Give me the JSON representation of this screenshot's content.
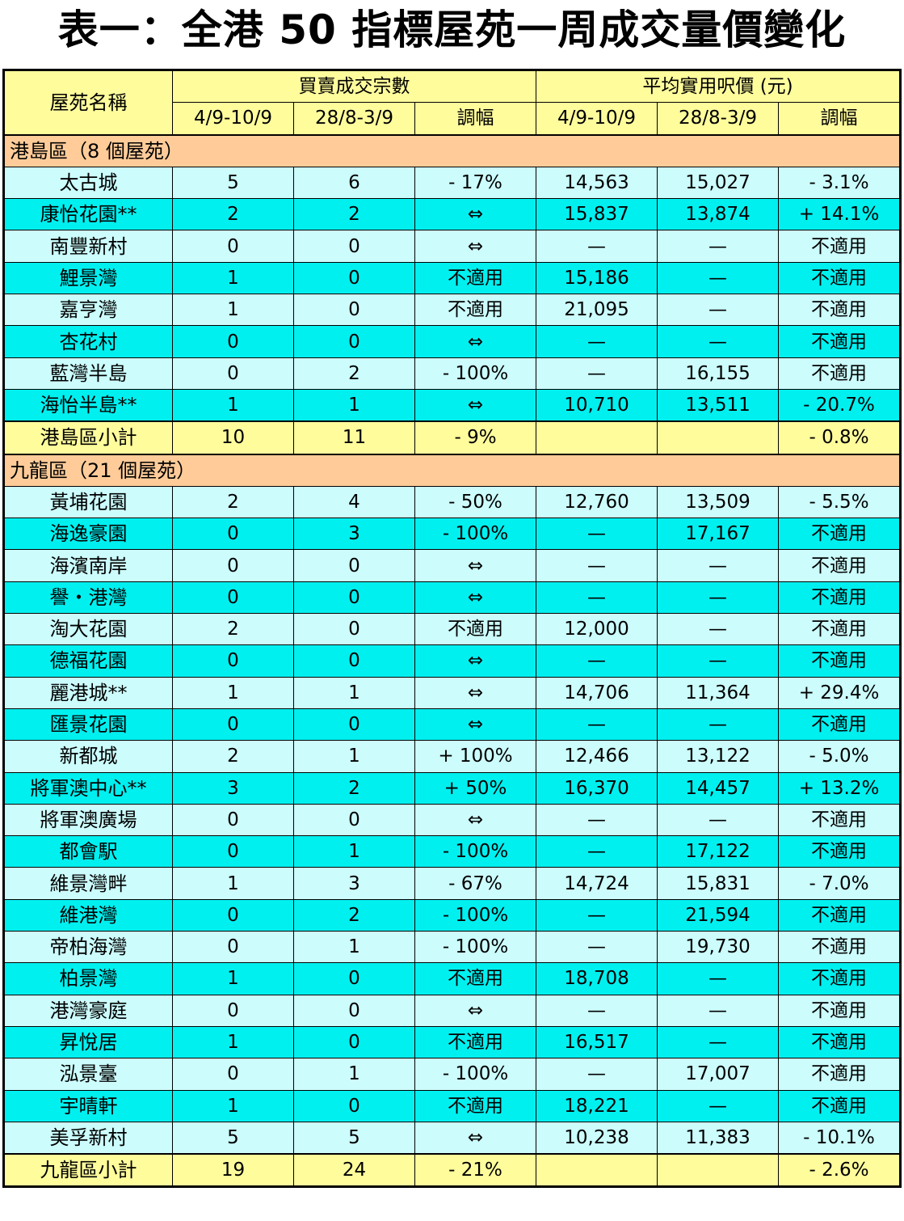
{
  "title": "表一：全港 50 指標屋苑一周成交量價變化",
  "header": {
    "estate": "屋苑名稱",
    "volume": "買賣成交宗數",
    "price": "平均實用呎價 (元)",
    "period1": "4/9-10/9",
    "period2": "28/8-3/9",
    "change": "調幅"
  },
  "sections": [
    {
      "name": "港島區（8 個屋苑）",
      "rows": [
        [
          "太古城",
          "5",
          "6",
          "- 17%",
          "14,563",
          "15,027",
          "- 3.1%"
        ],
        [
          "康怡花園**",
          "2",
          "2",
          "⇔",
          "15,837",
          "13,874",
          "+ 14.1%"
        ],
        [
          "南豐新村",
          "0",
          "0",
          "⇔",
          "—",
          "—",
          "不適用"
        ],
        [
          "鯉景灣",
          "1",
          "0",
          "不適用",
          "15,186",
          "—",
          "不適用"
        ],
        [
          "嘉亨灣",
          "1",
          "0",
          "不適用",
          "21,095",
          "—",
          "不適用"
        ],
        [
          "杏花村",
          "0",
          "0",
          "⇔",
          "—",
          "—",
          "不適用"
        ],
        [
          "藍灣半島",
          "0",
          "2",
          "- 100%",
          "—",
          "16,155",
          "不適用"
        ],
        [
          "海怡半島**",
          "1",
          "1",
          "⇔",
          "10,710",
          "13,511",
          "- 20.7%"
        ]
      ],
      "subtotal": [
        "港島區小計",
        "10",
        "11",
        "- 9%",
        "",
        "",
        "- 0.8%"
      ]
    },
    {
      "name": "九龍區（21 個屋苑）",
      "rows": [
        [
          "黃埔花園",
          "2",
          "4",
          "- 50%",
          "12,760",
          "13,509",
          "- 5.5%"
        ],
        [
          "海逸豪園",
          "0",
          "3",
          "- 100%",
          "—",
          "17,167",
          "不適用"
        ],
        [
          "海濱南岸",
          "0",
          "0",
          "⇔",
          "—",
          "—",
          "不適用"
        ],
        [
          "譽・港灣",
          "0",
          "0",
          "⇔",
          "—",
          "—",
          "不適用"
        ],
        [
          "淘大花園",
          "2",
          "0",
          "不適用",
          "12,000",
          "—",
          "不適用"
        ],
        [
          "德福花園",
          "0",
          "0",
          "⇔",
          "—",
          "—",
          "不適用"
        ],
        [
          "麗港城**",
          "1",
          "1",
          "⇔",
          "14,706",
          "11,364",
          "+ 29.4%"
        ],
        [
          "匯景花園",
          "0",
          "0",
          "⇔",
          "—",
          "—",
          "不適用"
        ],
        [
          "新都城",
          "2",
          "1",
          "+ 100%",
          "12,466",
          "13,122",
          "- 5.0%"
        ],
        [
          "將軍澳中心**",
          "3",
          "2",
          "+ 50%",
          "16,370",
          "14,457",
          "+ 13.2%"
        ],
        [
          "將軍澳廣場",
          "0",
          "0",
          "⇔",
          "—",
          "—",
          "不適用"
        ],
        [
          "都會駅",
          "0",
          "1",
          "- 100%",
          "—",
          "17,122",
          "不適用"
        ],
        [
          "維景灣畔",
          "1",
          "3",
          "- 67%",
          "14,724",
          "15,831",
          "- 7.0%"
        ],
        [
          "維港灣",
          "0",
          "2",
          "- 100%",
          "—",
          "21,594",
          "不適用"
        ],
        [
          "帝柏海灣",
          "0",
          "1",
          "- 100%",
          "—",
          "19,730",
          "不適用"
        ],
        [
          "柏景灣",
          "1",
          "0",
          "不適用",
          "18,708",
          "—",
          "不適用"
        ],
        [
          "港灣豪庭",
          "0",
          "0",
          "⇔",
          "—",
          "—",
          "不適用"
        ],
        [
          "昇悅居",
          "1",
          "0",
          "不適用",
          "16,517",
          "—",
          "不適用"
        ],
        [
          "泓景臺",
          "0",
          "1",
          "- 100%",
          "—",
          "17,007",
          "不適用"
        ],
        [
          "宇晴軒",
          "1",
          "0",
          "不適用",
          "18,221",
          "—",
          "不適用"
        ],
        [
          "美孚新村",
          "5",
          "5",
          "⇔",
          "10,238",
          "11,383",
          "- 10.1%"
        ]
      ],
      "subtotal": [
        "九龍區小計",
        "19",
        "24",
        "- 21%",
        "",
        "",
        "- 2.6%"
      ]
    }
  ],
  "colors": {
    "header": "#fffc9c",
    "section": "#ffcc99",
    "row_light": "#ccfcfc",
    "row_cyan": "#00f0f0",
    "subtotal": "#fffc9c"
  }
}
